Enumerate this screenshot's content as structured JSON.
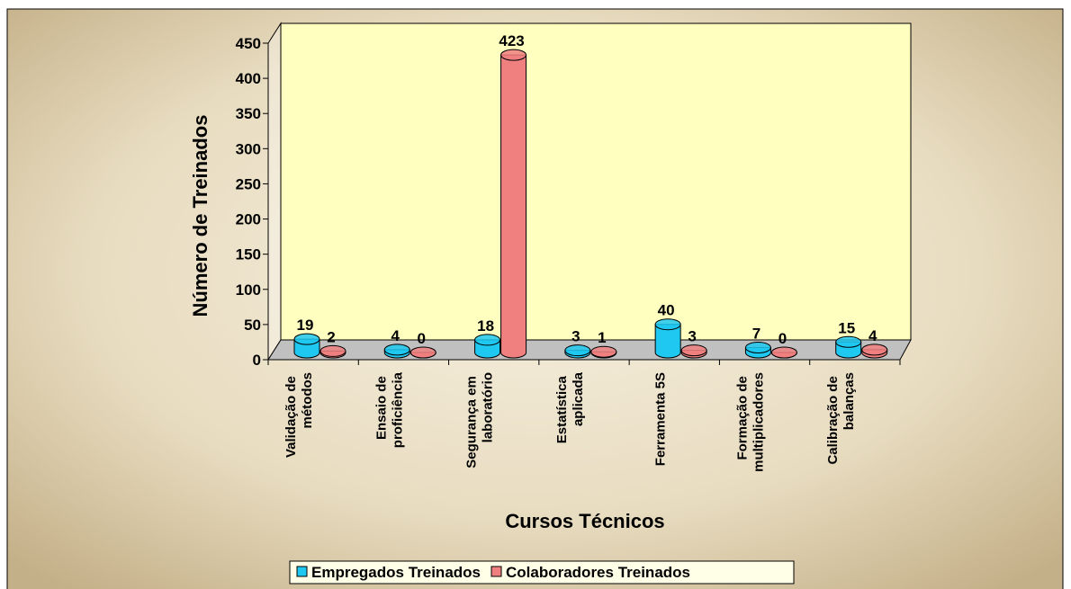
{
  "chart_data": {
    "type": "bar",
    "xlabel": "Cursos Técnicos",
    "ylabel": "Número de Treinados",
    "categories": [
      "Validação de métodos",
      "Ensaio de proficiência",
      "Segurança em laboratório",
      "Estatística aplicada",
      "Ferramenta 5S",
      "Formação de multiplicadores",
      "Calibração de balanças"
    ],
    "series": [
      {
        "name": "Empregados Treinados",
        "color": "#1ec8f0",
        "values": [
          19,
          4,
          18,
          3,
          40,
          7,
          15
        ]
      },
      {
        "name": "Colaboradores Treinados",
        "color": "#f08080",
        "values": [
          2,
          0,
          423,
          1,
          3,
          0,
          4
        ]
      }
    ],
    "ylim": [
      0,
      450
    ],
    "yticks": [
      0,
      50,
      100,
      150,
      200,
      250,
      300,
      350,
      400,
      450
    ],
    "legend": "bottom"
  }
}
